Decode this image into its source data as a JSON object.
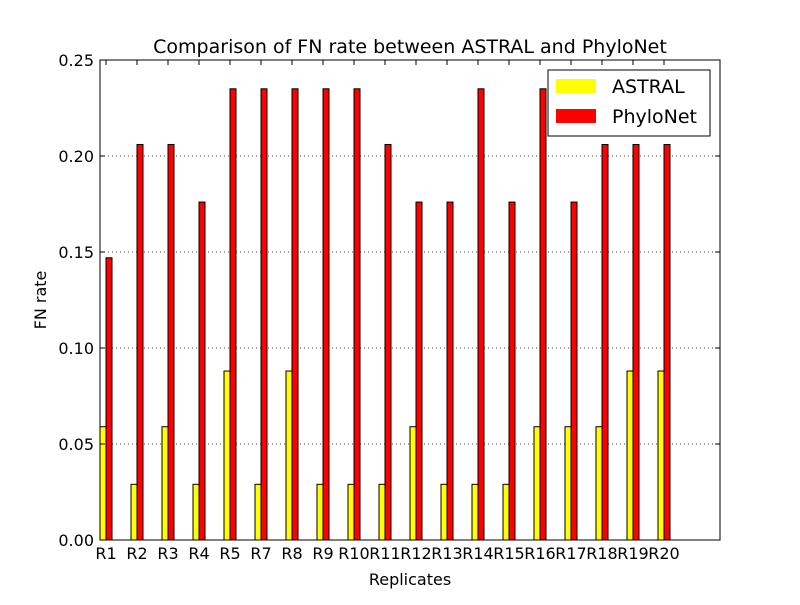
{
  "chart_data": {
    "type": "bar",
    "title": "Comparison of FN rate between ASTRAL and PhyloNet",
    "xlabel": "Replicates",
    "ylabel": "FN rate",
    "ylim": [
      0,
      0.25
    ],
    "yticks": [
      "0.00",
      "0.05",
      "0.10",
      "0.15",
      "0.20",
      "0.25"
    ],
    "categories": [
      "R1",
      "R2",
      "R3",
      "R4",
      "R5",
      "R7",
      "R8",
      "R9",
      "R10",
      "R11",
      "R12",
      "R13",
      "R14",
      "R15",
      "R16",
      "R17",
      "R18",
      "R19",
      "R20"
    ],
    "series": [
      {
        "name": "ASTRAL",
        "color": "#ffff00",
        "values": [
          0.059,
          0.029,
          0.059,
          0.029,
          0.088,
          0.029,
          0.088,
          0.029,
          0.029,
          0.029,
          0.059,
          0.029,
          0.029,
          0.029,
          0.059,
          0.059,
          0.059,
          0.088,
          0.088
        ]
      },
      {
        "name": "PhyloNet",
        "color": "#ff0000",
        "values": [
          0.147,
          0.206,
          0.206,
          0.176,
          0.235,
          0.235,
          0.235,
          0.235,
          0.235,
          0.206,
          0.176,
          0.176,
          0.235,
          0.176,
          0.235,
          0.176,
          0.206,
          0.206,
          0.206
        ]
      }
    ],
    "grid": "y-dotted",
    "legend_position": "top-right"
  }
}
